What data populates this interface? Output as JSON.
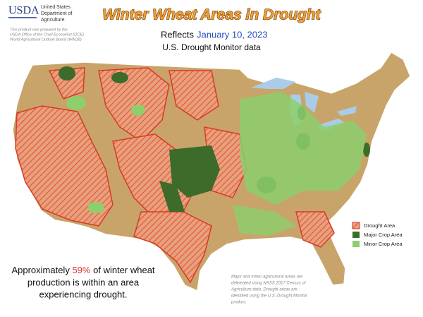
{
  "header": {
    "logo": "USDA",
    "agency_lines": [
      "United States",
      "Department of",
      "Agriculture"
    ],
    "credit_lines": [
      "This product was prepared by the",
      "USDA Office of the Chief Economist (OCE)",
      "World Agricultural Outlook Board (WAOB)"
    ],
    "title": "Winter Wheat Areas in Drought",
    "reflects": "Reflects",
    "date": "January 10, 2023",
    "source": "U.S. Drought Monitor data"
  },
  "legend": [
    "Drought Area",
    "Major Crop Area",
    "Minor Crop Area"
  ],
  "summary": {
    "prefix": "Approximately",
    "share": "59%",
    "line1_rest": "of winter wheat",
    "line2": "production is within an area",
    "line3": "experiencing drought."
  },
  "note_lines": [
    "Major and minor agricultural areas are",
    "delineated using NASS 2017 Census of",
    "Agriculture data.  Drought areas are",
    "identified using the U.S. Drought Monitor",
    "product."
  ]
}
